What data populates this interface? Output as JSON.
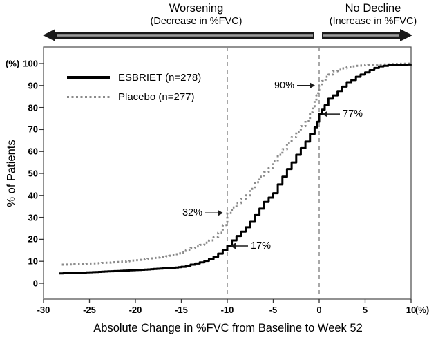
{
  "header": {
    "left_title": "Worsening",
    "left_subtitle": "(Decrease in %FVC)",
    "right_title": "No Decline",
    "right_subtitle": "(Increase in %FVC)"
  },
  "chart_data": {
    "type": "line",
    "subtype": "cumulative-distribution",
    "xlabel": "Absolute Change in %FVC from Baseline to Week 52",
    "ylabel": "% of Patients",
    "x_unit_label": "(%)",
    "y_unit_label": "(%)",
    "xlim": [
      -30,
      10
    ],
    "ylim": [
      0,
      100
    ],
    "x_ticks": [
      -30,
      -25,
      -20,
      -15,
      -10,
      -5,
      0,
      5,
      10
    ],
    "y_ticks": [
      0,
      10,
      20,
      30,
      40,
      50,
      60,
      70,
      80,
      90,
      100
    ],
    "guide_lines_x": [
      -10,
      0
    ],
    "grid": false,
    "legend_position": "top-left",
    "series": [
      {
        "id": "esbriet",
        "name": "ESBRIET (n=278)",
        "style": "solid-black",
        "points": [
          [
            -28.3,
            4.5
          ],
          [
            -27,
            4.7
          ],
          [
            -26,
            4.8
          ],
          [
            -25,
            5
          ],
          [
            -24,
            5.2
          ],
          [
            -23,
            5.4
          ],
          [
            -22,
            5.6
          ],
          [
            -21,
            5.8
          ],
          [
            -20,
            6
          ],
          [
            -19,
            6.2
          ],
          [
            -18,
            6.5
          ],
          [
            -17,
            6.8
          ],
          [
            -16,
            7
          ],
          [
            -15,
            7.5
          ],
          [
            -14.5,
            8
          ],
          [
            -14,
            8.5
          ],
          [
            -13.5,
            9
          ],
          [
            -13,
            9.5
          ],
          [
            -12.5,
            10.2
          ],
          [
            -12,
            11
          ],
          [
            -11.5,
            12
          ],
          [
            -11,
            13.5
          ],
          [
            -10.5,
            15
          ],
          [
            -10,
            17
          ],
          [
            -9.5,
            19.5
          ],
          [
            -9,
            21.5
          ],
          [
            -8.5,
            23.5
          ],
          [
            -8,
            25.5
          ],
          [
            -7.5,
            28
          ],
          [
            -7,
            31
          ],
          [
            -6.5,
            34
          ],
          [
            -6,
            37
          ],
          [
            -5.5,
            39
          ],
          [
            -5,
            41
          ],
          [
            -4.5,
            45
          ],
          [
            -4,
            48.5
          ],
          [
            -3.5,
            52
          ],
          [
            -3,
            55
          ],
          [
            -2.5,
            58.5
          ],
          [
            -2,
            61.5
          ],
          [
            -1.5,
            64.5
          ],
          [
            -1,
            68
          ],
          [
            -0.5,
            71
          ],
          [
            -0.2,
            73.5
          ],
          [
            0,
            77
          ],
          [
            0.3,
            79
          ],
          [
            0.6,
            81
          ],
          [
            1,
            84
          ],
          [
            1.5,
            85.5
          ],
          [
            2,
            87.5
          ],
          [
            2.5,
            89.5
          ],
          [
            3,
            91.5
          ],
          [
            3.5,
            92.5
          ],
          [
            4,
            94
          ],
          [
            4.5,
            95
          ],
          [
            5,
            96
          ],
          [
            5.5,
            97
          ],
          [
            6,
            98
          ],
          [
            6.5,
            98.7
          ],
          [
            7,
            99
          ],
          [
            7.5,
            99.2
          ],
          [
            8,
            99.3
          ],
          [
            9,
            99.5
          ],
          [
            10,
            99.6
          ]
        ]
      },
      {
        "id": "placebo",
        "name": "Placebo (n=277)",
        "style": "dotted-gray",
        "points": [
          [
            -28,
            8.5
          ],
          [
            -27,
            8.6
          ],
          [
            -26,
            8.7
          ],
          [
            -25,
            9
          ],
          [
            -24,
            9.2
          ],
          [
            -23,
            9.4
          ],
          [
            -22,
            9.7
          ],
          [
            -21,
            10
          ],
          [
            -20,
            10.5
          ],
          [
            -19,
            11
          ],
          [
            -18,
            11.5
          ],
          [
            -17,
            12
          ],
          [
            -16,
            12.8
          ],
          [
            -15,
            14
          ],
          [
            -14.5,
            15
          ],
          [
            -14,
            16
          ],
          [
            -13.5,
            16.8
          ],
          [
            -13,
            17.5
          ],
          [
            -12.5,
            18.5
          ],
          [
            -12,
            19.5
          ],
          [
            -11.5,
            21
          ],
          [
            -11,
            23
          ],
          [
            -10.5,
            26.5
          ],
          [
            -10,
            32
          ],
          [
            -9.5,
            34.5
          ],
          [
            -9,
            36.5
          ],
          [
            -8.5,
            38.5
          ],
          [
            -8,
            40
          ],
          [
            -7.5,
            43
          ],
          [
            -7,
            46
          ],
          [
            -6.5,
            48.5
          ],
          [
            -6,
            50.5
          ],
          [
            -5.5,
            52.5
          ],
          [
            -5,
            55.5
          ],
          [
            -4.5,
            58.5
          ],
          [
            -4,
            61
          ],
          [
            -3.5,
            64
          ],
          [
            -3,
            66.5
          ],
          [
            -2.5,
            69
          ],
          [
            -2,
            71.5
          ],
          [
            -1.5,
            74
          ],
          [
            -1,
            78
          ],
          [
            -0.7,
            80.5
          ],
          [
            -0.5,
            83
          ],
          [
            -0.3,
            85.5
          ],
          [
            -0.1,
            88
          ],
          [
            0,
            90
          ],
          [
            0.3,
            92
          ],
          [
            0.7,
            94
          ],
          [
            1,
            95
          ],
          [
            1.5,
            96.5
          ],
          [
            2,
            97.2
          ],
          [
            2.5,
            97.8
          ],
          [
            3,
            98.3
          ],
          [
            3.5,
            98.7
          ],
          [
            4,
            99
          ],
          [
            5,
            99.3
          ],
          [
            6,
            99.5
          ],
          [
            7,
            99.6
          ],
          [
            8,
            99.8
          ],
          [
            9,
            99.9
          ],
          [
            10,
            100
          ]
        ]
      }
    ],
    "annotations": [
      {
        "label": "90%",
        "x": 0,
        "y": 90,
        "series": "placebo",
        "arrow": "right"
      },
      {
        "label": "77%",
        "x": 0,
        "y": 77,
        "series": "esbriet",
        "arrow": "left"
      },
      {
        "label": "32%",
        "x": -10,
        "y": 32,
        "series": "placebo",
        "arrow": "right"
      },
      {
        "label": "17%",
        "x": -10,
        "y": 17,
        "series": "esbriet",
        "arrow": "left"
      }
    ]
  },
  "colors": {
    "esbriet_line": "#000000",
    "placebo_line": "#8a8a8a",
    "guide_line": "#8c8c8c",
    "axis": "#4a4a4a",
    "arrow_dark": "#1a1a1a",
    "arrow_core": "#9a9a9a",
    "text": "#000000",
    "background": "#ffffff"
  }
}
